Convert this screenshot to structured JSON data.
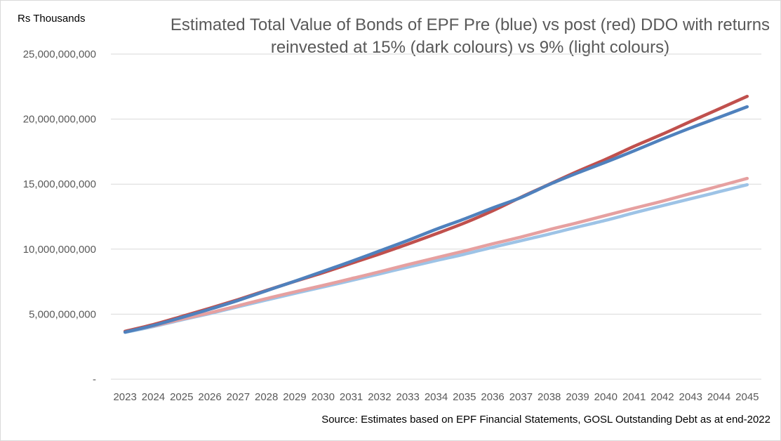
{
  "chart_data": {
    "type": "line",
    "title": "Estimated Total Value of Bonds of EPF Pre (blue) vs post (red) DDO with returns reinvested at 15% (dark colours) vs 9% (light colours)",
    "ylabel": "Rs Thousands",
    "xlabel": "",
    "source": "Source: Estimates based on EPF Financial Statements, GOSL Outstanding Debt as at end-2022",
    "x": [
      "2023",
      "2024",
      "2025",
      "2026",
      "2027",
      "2028",
      "2029",
      "2030",
      "2031",
      "2032",
      "2033",
      "2034",
      "2035",
      "2036",
      "2037",
      "2038",
      "2039",
      "2040",
      "2041",
      "2042",
      "2043",
      "2044",
      "2045"
    ],
    "ylim": [
      0,
      25000000000
    ],
    "yticks": [
      0,
      5000000000,
      10000000000,
      15000000000,
      20000000000,
      25000000000
    ],
    "ytick_labels": [
      "-",
      "5,000,000,000",
      "10,000,000,000",
      "15,000,000,000",
      "20,000,000,000",
      "25,000,000,000"
    ],
    "grid": "horizontal",
    "legend": "none",
    "series": [
      {
        "color": "#9dc3e6",
        "values": [
          3600000000,
          4050000000,
          4560000000,
          5050000000,
          5570000000,
          6090000000,
          6600000000,
          7090000000,
          7590000000,
          8100000000,
          8620000000,
          9120000000,
          9610000000,
          10140000000,
          10650000000,
          11160000000,
          11700000000,
          12220000000,
          12790000000,
          13340000000,
          13870000000,
          14410000000,
          14950000000
        ]
      },
      {
        "color": "#e6a0a0",
        "values": [
          3650000000,
          4100000000,
          4610000000,
          5110000000,
          5650000000,
          6200000000,
          6710000000,
          7210000000,
          7730000000,
          8260000000,
          8810000000,
          9340000000,
          9860000000,
          10410000000,
          10930000000,
          11500000000,
          12030000000,
          12590000000,
          13150000000,
          13690000000,
          14270000000,
          14850000000,
          15440000000
        ]
      },
      {
        "color": "#c0504d",
        "values": [
          3680000000,
          4200000000,
          4820000000,
          5460000000,
          6120000000,
          6830000000,
          7520000000,
          8190000000,
          8910000000,
          9630000000,
          10390000000,
          11180000000,
          12010000000,
          12950000000,
          13990000000,
          14990000000,
          15980000000,
          16910000000,
          17910000000,
          18840000000,
          19820000000,
          20780000000,
          21750000000
        ]
      },
      {
        "color": "#4f81bd",
        "values": [
          3620000000,
          4130000000,
          4740000000,
          5380000000,
          6060000000,
          6800000000,
          7530000000,
          8290000000,
          9060000000,
          9860000000,
          10670000000,
          11530000000,
          12320000000,
          13170000000,
          13970000000,
          14970000000,
          15860000000,
          16690000000,
          17560000000,
          18460000000,
          19320000000,
          20130000000,
          20950000000
        ]
      }
    ]
  }
}
